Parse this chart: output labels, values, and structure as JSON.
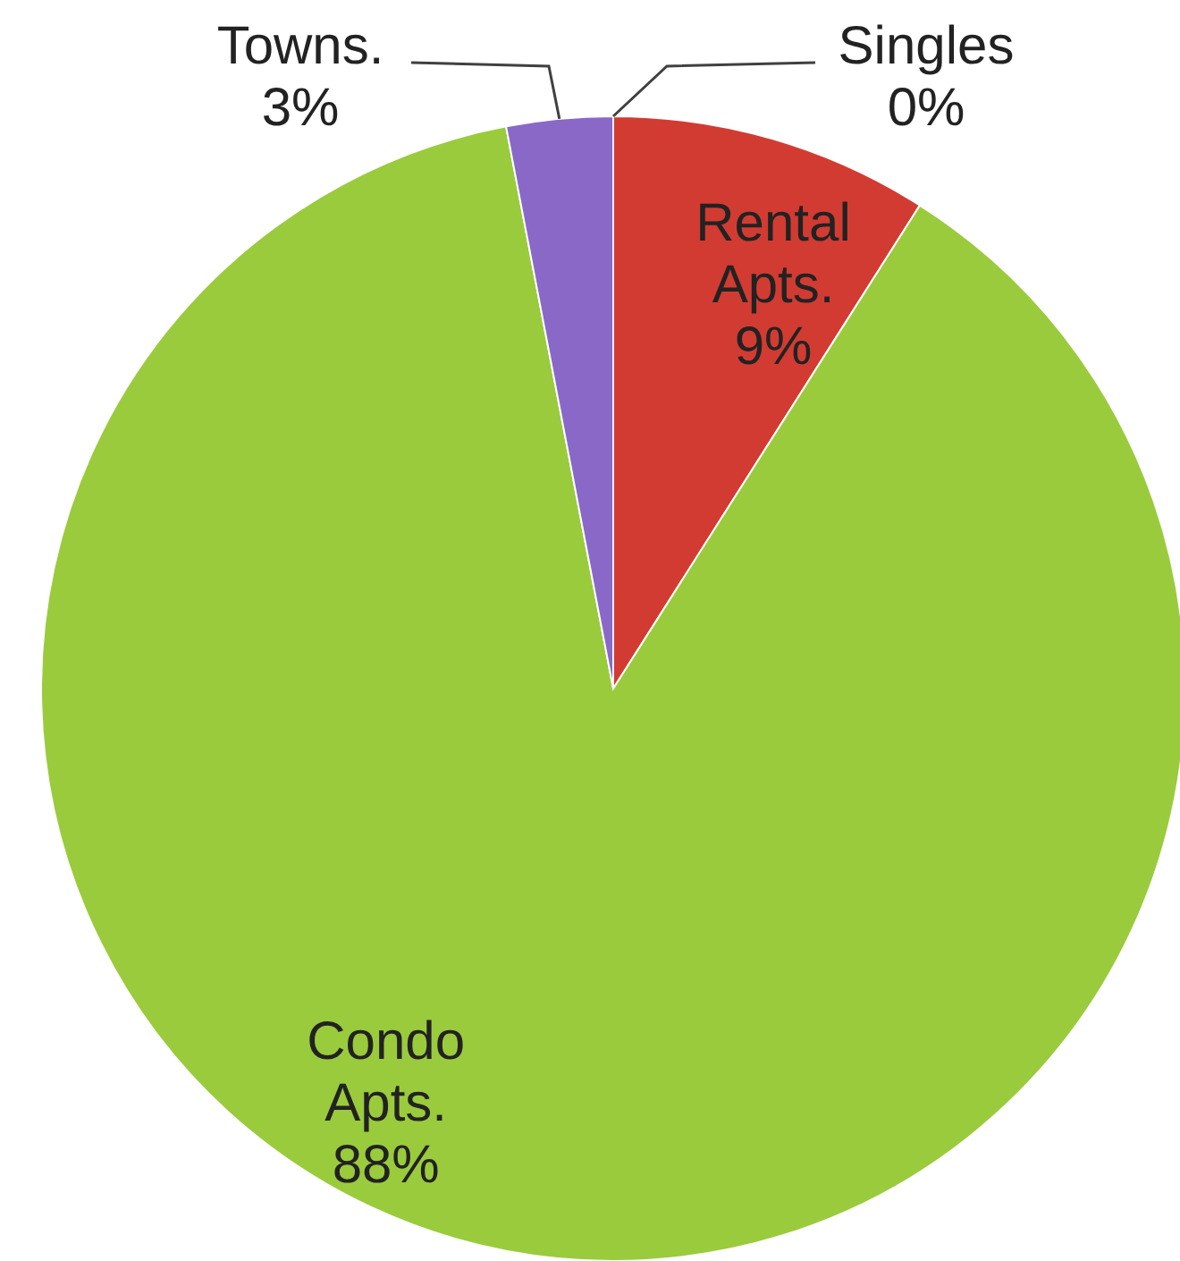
{
  "chart_data": {
    "type": "pie",
    "categories": [
      "Singles",
      "Rental Apts.",
      "Condo Apts.",
      "Towns."
    ],
    "values": [
      0,
      9,
      88,
      3
    ],
    "colors": [
      "#4f81bd",
      "#d23b32",
      "#9acb3c",
      "#8a68c8"
    ],
    "value_labels": [
      "0%",
      "9%",
      "88%",
      "3%"
    ]
  }
}
